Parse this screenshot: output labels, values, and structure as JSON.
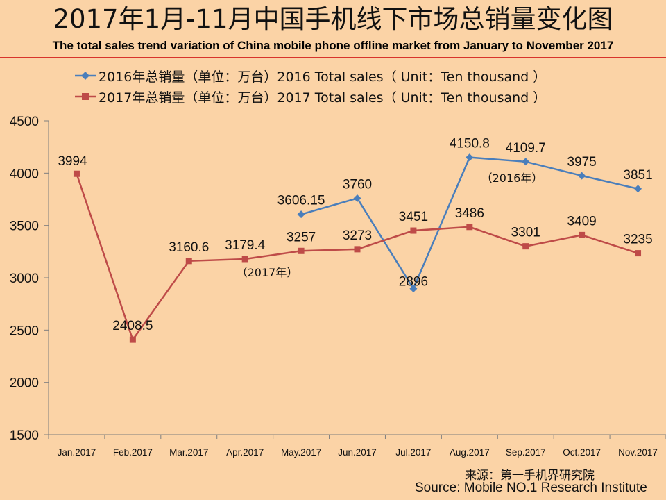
{
  "title_cn": "2017年1月-11月中国手机线下市场总销量变化图",
  "title_en": "The total sales trend variation of China mobile phone offline market from January to November 2017",
  "source_cn": "来源：第一手机界研究院",
  "source_en": "Source: Mobile NO.1 Research Institute",
  "colors": {
    "series_2016": "#4a7ebb",
    "series_2017": "#be4b48",
    "background": "#fbd3a6",
    "rule": "#d8342c"
  },
  "chart_data": {
    "type": "line",
    "categories": [
      "Jan.2017",
      "Feb.2017",
      "Mar.2017",
      "Apr.2017",
      "May.2017",
      "Jun.2017",
      "Jul.2017",
      "Aug.2017",
      "Sep.2017",
      "Oct.2017",
      "Nov.2017"
    ],
    "ylim": [
      1500,
      4500
    ],
    "yticks": [
      "1500",
      "2000",
      "2500",
      "3000",
      "3500",
      "4000",
      "4500"
    ],
    "grid": false,
    "legend_position": "top-left",
    "series": [
      {
        "name": "2016年总销量（单位：万台）2016 Total sales（ Unit：Ten thousand ）",
        "marker": "diamond",
        "values": [
          null,
          null,
          null,
          null,
          3606.15,
          3760,
          2896,
          4150.8,
          4109.7,
          3975,
          3851
        ],
        "labels": [
          "",
          "",
          "",
          "",
          "3606.15",
          "3760",
          "2896",
          "4150.8",
          "4109.7",
          "3975",
          "3851"
        ]
      },
      {
        "name": "2017年总销量（单位：万台）2017 Total sales（ Unit：Ten thousand ）",
        "marker": "square",
        "values": [
          3994,
          2408.5,
          3160.6,
          3179.4,
          3257,
          3273,
          3451,
          3486,
          3301,
          3409,
          3235
        ],
        "labels": [
          "3994",
          "2408.5",
          "3160.6",
          "3179.4",
          "3257",
          "3273",
          "3451",
          "3486",
          "3301",
          "3409",
          "3235"
        ]
      }
    ],
    "annotations": [
      "（2016年）",
      "（2017年）"
    ]
  }
}
